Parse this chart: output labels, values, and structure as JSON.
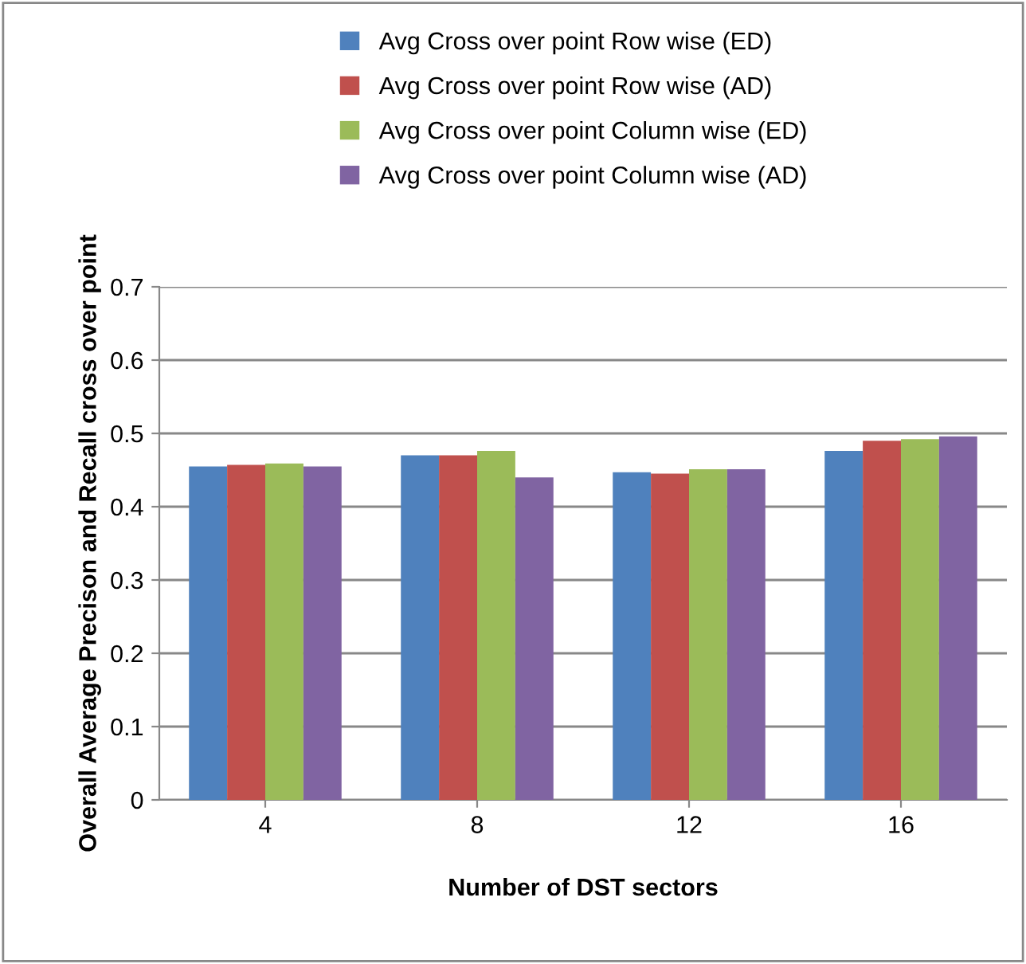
{
  "chart_data": {
    "type": "bar",
    "xlabel": "Number of DST sectors",
    "ylabel": "Overall Average Precison and Recall cross over point",
    "categories": [
      "4",
      "8",
      "12",
      "16"
    ],
    "series": [
      {
        "name": "Avg Cross over point Row wise (ED)",
        "color": "#4f81bd",
        "values": [
          0.455,
          0.47,
          0.447,
          0.476
        ]
      },
      {
        "name": "Avg Cross over point Row wise (AD)",
        "color": "#c0504d",
        "values": [
          0.457,
          0.47,
          0.445,
          0.49
        ]
      },
      {
        "name": "Avg Cross over point Column wise (ED)",
        "color": "#9bbb59",
        "values": [
          0.459,
          0.476,
          0.451,
          0.492
        ]
      },
      {
        "name": "Avg Cross over point Column wise (AD)",
        "color": "#8064a2",
        "values": [
          0.455,
          0.44,
          0.451,
          0.496
        ]
      }
    ],
    "ylim": [
      0,
      0.7
    ],
    "yticks": [
      0,
      0.1,
      0.2,
      0.3,
      0.4,
      0.5,
      0.6,
      0.7
    ],
    "grid": "y",
    "legend": "top"
  }
}
